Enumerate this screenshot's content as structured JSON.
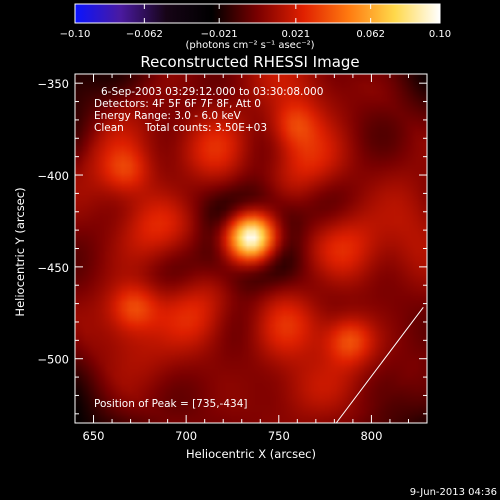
{
  "chart_data": {
    "type": "heatmap",
    "title": "Reconstructed RHESSI Image",
    "xlabel": "Heliocentric X (arcsec)",
    "ylabel": "Heliocentric Y (arcsec)",
    "xlim": [
      640,
      830
    ],
    "ylim": [
      -535,
      -345
    ],
    "x_ticks": [
      650,
      700,
      750,
      800
    ],
    "y_ticks": [
      -350,
      -400,
      -450,
      -500
    ],
    "x_tick_labels": [
      "650",
      "700",
      "750",
      "800"
    ],
    "y_tick_labels": [
      "−350",
      "−400",
      "−450",
      "−500"
    ],
    "colorbar": {
      "range": [
        -0.1,
        0.1
      ],
      "ticks": [
        -0.1,
        -0.062,
        -0.021,
        0.021,
        0.062,
        0.1
      ],
      "tick_labels": [
        "−0.10",
        "−0.062",
        "−0.021",
        "0.021",
        "0.062",
        "0.10"
      ],
      "unit_label": "(photons cm⁻² s⁻¹ asec⁻²)",
      "colors": [
        "#0a14ff",
        "#4a1aa0",
        "#160416",
        "#000000",
        "#7a0000",
        "#e02000",
        "#ff7a10",
        "#ffd84a",
        "#ffffff"
      ]
    },
    "peak": {
      "x": 735,
      "y": -434,
      "value": 0.1
    },
    "secondary_sources": [
      {
        "x": 788,
        "y": -490,
        "value": 0.052
      },
      {
        "x": 672,
        "y": -472,
        "value": 0.046
      },
      {
        "x": 758,
        "y": -372,
        "value": 0.04
      },
      {
        "x": 668,
        "y": -398,
        "value": 0.036
      }
    ],
    "ring_radius_arcsec": 52,
    "limb_line": [
      {
        "x": 781,
        "y": -535
      },
      {
        "x": 828,
        "y": -472
      }
    ],
    "annotations": {
      "time_range": "6-Sep-2003 03:29:12.000 to 03:30:08.000",
      "detectors": "Detectors: 4F 5F 6F 7F 8F, Att 0",
      "energy_range": "Energy Range: 3.0 - 6.0 keV",
      "clean_label": "Clean",
      "total_counts": "Total counts: 3.50E+03",
      "peak_position": "Position of Peak = [735,-434]"
    }
  },
  "footer": {
    "timestamp": "9-Jun-2013 04:36"
  }
}
